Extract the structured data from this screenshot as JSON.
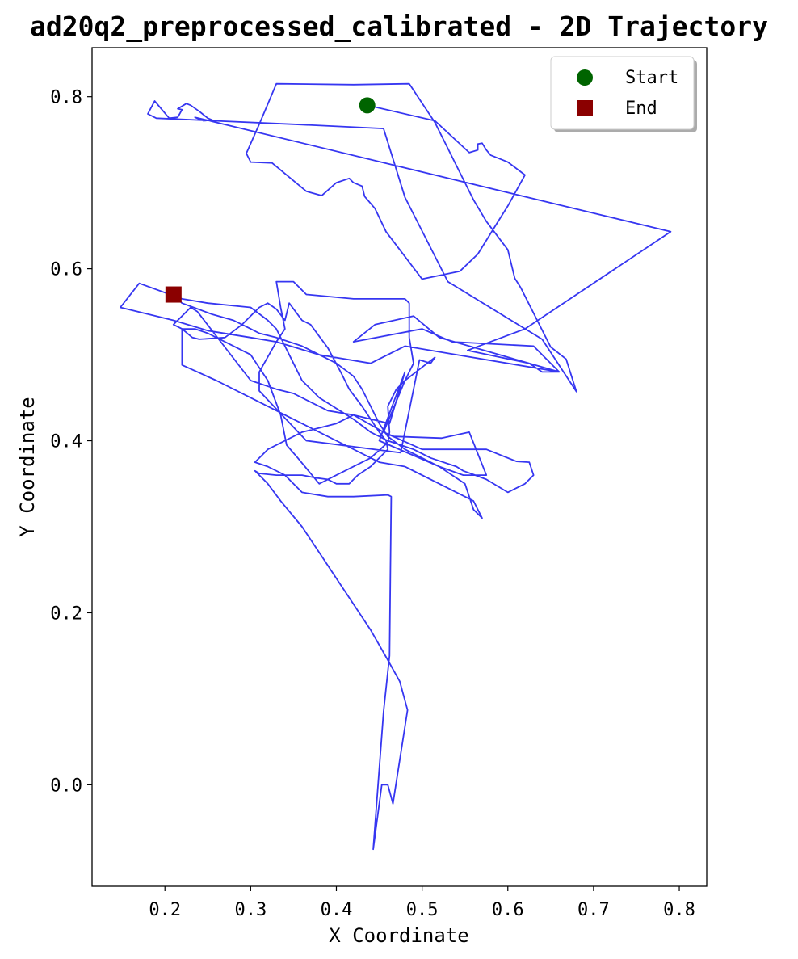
{
  "chart_data": {
    "type": "line",
    "title": "ad20q2_preprocessed_calibrated - 2D Trajectory",
    "xlabel": "X Coordinate",
    "ylabel": "Y Coordinate",
    "xlim": [
      0.115,
      0.832
    ],
    "ylim": [
      -0.118,
      0.857
    ],
    "xticks": [
      0.2,
      0.3,
      0.4,
      0.5,
      0.6,
      0.7,
      0.8
    ],
    "xtick_labels": [
      "0.2",
      "0.3",
      "0.4",
      "0.5",
      "0.6",
      "0.7",
      "0.8"
    ],
    "yticks": [
      0.0,
      0.2,
      0.4,
      0.6,
      0.8
    ],
    "ytick_labels": [
      "0.0",
      "0.2",
      "0.4",
      "0.6",
      "0.8"
    ],
    "grid": false,
    "line_color": "#2b2bf0",
    "legend": {
      "position": "top-right",
      "entries": [
        {
          "label": "Start",
          "marker": "circle",
          "color": "#006400"
        },
        {
          "label": "End",
          "marker": "square",
          "color": "#8b0000"
        }
      ]
    },
    "start_point": {
      "x": 0.436,
      "y": 0.79
    },
    "end_point": {
      "x": 0.21,
      "y": 0.57
    },
    "series": [
      {
        "name": "trajectory",
        "points": [
          [
            0.436,
            0.79
          ],
          [
            0.515,
            0.772
          ],
          [
            0.555,
            0.735
          ],
          [
            0.565,
            0.738
          ],
          [
            0.565,
            0.745
          ],
          [
            0.57,
            0.746
          ],
          [
            0.575,
            0.738
          ],
          [
            0.58,
            0.732
          ],
          [
            0.6,
            0.724
          ],
          [
            0.62,
            0.709
          ],
          [
            0.6,
            0.673
          ],
          [
            0.59,
            0.657
          ],
          [
            0.565,
            0.617
          ],
          [
            0.544,
            0.597
          ],
          [
            0.5,
            0.588
          ],
          [
            0.458,
            0.643
          ],
          [
            0.445,
            0.67
          ],
          [
            0.433,
            0.684
          ],
          [
            0.43,
            0.696
          ],
          [
            0.42,
            0.7
          ],
          [
            0.415,
            0.705
          ],
          [
            0.4,
            0.7
          ],
          [
            0.383,
            0.685
          ],
          [
            0.365,
            0.69
          ],
          [
            0.325,
            0.723
          ],
          [
            0.3,
            0.724
          ],
          [
            0.295,
            0.734
          ],
          [
            0.31,
            0.768
          ],
          [
            0.33,
            0.815
          ],
          [
            0.42,
            0.814
          ],
          [
            0.485,
            0.815
          ],
          [
            0.515,
            0.77
          ],
          [
            0.56,
            0.68
          ],
          [
            0.575,
            0.655
          ],
          [
            0.6,
            0.622
          ],
          [
            0.608,
            0.589
          ],
          [
            0.615,
            0.578
          ],
          [
            0.65,
            0.509
          ],
          [
            0.668,
            0.495
          ],
          [
            0.68,
            0.457
          ],
          [
            0.64,
            0.518
          ],
          [
            0.53,
            0.585
          ],
          [
            0.48,
            0.683
          ],
          [
            0.455,
            0.763
          ],
          [
            0.35,
            0.768
          ],
          [
            0.19,
            0.775
          ],
          [
            0.18,
            0.78
          ],
          [
            0.188,
            0.795
          ],
          [
            0.205,
            0.775
          ],
          [
            0.215,
            0.776
          ],
          [
            0.22,
            0.785
          ],
          [
            0.215,
            0.786
          ],
          [
            0.225,
            0.792
          ],
          [
            0.23,
            0.79
          ],
          [
            0.24,
            0.783
          ],
          [
            0.25,
            0.775
          ],
          [
            0.255,
            0.773
          ],
          [
            0.245,
            0.772
          ],
          [
            0.235,
            0.776
          ],
          [
            0.79,
            0.643
          ],
          [
            0.62,
            0.53
          ],
          [
            0.553,
            0.505
          ],
          [
            0.625,
            0.49
          ],
          [
            0.64,
            0.48
          ],
          [
            0.66,
            0.48
          ],
          [
            0.63,
            0.51
          ],
          [
            0.535,
            0.515
          ],
          [
            0.5,
            0.53
          ],
          [
            0.42,
            0.515
          ],
          [
            0.445,
            0.535
          ],
          [
            0.49,
            0.545
          ],
          [
            0.52,
            0.52
          ],
          [
            0.555,
            0.51
          ],
          [
            0.66,
            0.48
          ],
          [
            0.48,
            0.51
          ],
          [
            0.44,
            0.49
          ],
          [
            0.38,
            0.5
          ],
          [
            0.33,
            0.515
          ],
          [
            0.31,
            0.48
          ],
          [
            0.31,
            0.458
          ],
          [
            0.365,
            0.4
          ],
          [
            0.475,
            0.386
          ],
          [
            0.497,
            0.494
          ],
          [
            0.51,
            0.49
          ],
          [
            0.515,
            0.497
          ],
          [
            0.48,
            0.47
          ],
          [
            0.455,
            0.41
          ],
          [
            0.467,
            0.405
          ],
          [
            0.523,
            0.403
          ],
          [
            0.555,
            0.41
          ],
          [
            0.575,
            0.36
          ],
          [
            0.548,
            0.36
          ],
          [
            0.52,
            0.37
          ],
          [
            0.45,
            0.4
          ],
          [
            0.48,
            0.48
          ],
          [
            0.462,
            0.42
          ],
          [
            0.42,
            0.43
          ],
          [
            0.39,
            0.435
          ],
          [
            0.35,
            0.455
          ],
          [
            0.33,
            0.46
          ],
          [
            0.3,
            0.47
          ],
          [
            0.238,
            0.55
          ],
          [
            0.23,
            0.555
          ],
          [
            0.215,
            0.54
          ],
          [
            0.21,
            0.535
          ],
          [
            0.22,
            0.53
          ],
          [
            0.232,
            0.52
          ],
          [
            0.24,
            0.518
          ],
          [
            0.27,
            0.52
          ],
          [
            0.29,
            0.535
          ],
          [
            0.31,
            0.555
          ],
          [
            0.32,
            0.56
          ],
          [
            0.33,
            0.553
          ],
          [
            0.34,
            0.54
          ],
          [
            0.345,
            0.56
          ],
          [
            0.36,
            0.54
          ],
          [
            0.37,
            0.535
          ],
          [
            0.39,
            0.508
          ],
          [
            0.405,
            0.48
          ],
          [
            0.415,
            0.46
          ],
          [
            0.43,
            0.44
          ],
          [
            0.45,
            0.41
          ],
          [
            0.458,
            0.4
          ],
          [
            0.46,
            0.39
          ],
          [
            0.455,
            0.385
          ],
          [
            0.45,
            0.38
          ],
          [
            0.44,
            0.37
          ],
          [
            0.425,
            0.36
          ],
          [
            0.415,
            0.35
          ],
          [
            0.4,
            0.35
          ],
          [
            0.39,
            0.355
          ],
          [
            0.375,
            0.357
          ],
          [
            0.36,
            0.36
          ],
          [
            0.345,
            0.36
          ],
          [
            0.33,
            0.36
          ],
          [
            0.31,
            0.362
          ],
          [
            0.305,
            0.365
          ],
          [
            0.32,
            0.35
          ],
          [
            0.335,
            0.33
          ],
          [
            0.36,
            0.3
          ],
          [
            0.38,
            0.27
          ],
          [
            0.4,
            0.24
          ],
          [
            0.42,
            0.21
          ],
          [
            0.44,
            0.18
          ],
          [
            0.46,
            0.145
          ],
          [
            0.474,
            0.12
          ],
          [
            0.483,
            0.087
          ],
          [
            0.466,
            -0.022
          ],
          [
            0.46,
            0.0
          ],
          [
            0.453,
            0.0
          ],
          [
            0.443,
            -0.075
          ],
          [
            0.455,
            0.085
          ],
          [
            0.462,
            0.15
          ],
          [
            0.463,
            0.25
          ],
          [
            0.464,
            0.335
          ],
          [
            0.46,
            0.337
          ],
          [
            0.42,
            0.335
          ],
          [
            0.39,
            0.335
          ],
          [
            0.36,
            0.34
          ],
          [
            0.34,
            0.36
          ],
          [
            0.32,
            0.37
          ],
          [
            0.305,
            0.375
          ],
          [
            0.32,
            0.39
          ],
          [
            0.34,
            0.4
          ],
          [
            0.36,
            0.41
          ],
          [
            0.38,
            0.415
          ],
          [
            0.4,
            0.42
          ],
          [
            0.42,
            0.43
          ],
          [
            0.455,
            0.41
          ],
          [
            0.5,
            0.39
          ],
          [
            0.55,
            0.39
          ],
          [
            0.575,
            0.39
          ],
          [
            0.61,
            0.376
          ],
          [
            0.625,
            0.375
          ],
          [
            0.63,
            0.36
          ],
          [
            0.62,
            0.35
          ],
          [
            0.6,
            0.34
          ],
          [
            0.575,
            0.355
          ],
          [
            0.562,
            0.36
          ],
          [
            0.548,
            0.365
          ],
          [
            0.54,
            0.37
          ],
          [
            0.51,
            0.38
          ],
          [
            0.49,
            0.39
          ],
          [
            0.46,
            0.4
          ],
          [
            0.44,
            0.41
          ],
          [
            0.42,
            0.425
          ],
          [
            0.38,
            0.45
          ],
          [
            0.36,
            0.47
          ],
          [
            0.35,
            0.49
          ],
          [
            0.34,
            0.51
          ],
          [
            0.33,
            0.53
          ],
          [
            0.32,
            0.54
          ],
          [
            0.3,
            0.555
          ],
          [
            0.25,
            0.56
          ],
          [
            0.22,
            0.565
          ],
          [
            0.17,
            0.583
          ],
          [
            0.148,
            0.555
          ],
          [
            0.21,
            0.54
          ],
          [
            0.25,
            0.528
          ],
          [
            0.3,
            0.52
          ],
          [
            0.33,
            0.515
          ],
          [
            0.34,
            0.53
          ],
          [
            0.335,
            0.555
          ],
          [
            0.33,
            0.585
          ],
          [
            0.35,
            0.585
          ],
          [
            0.365,
            0.57
          ],
          [
            0.42,
            0.565
          ],
          [
            0.48,
            0.565
          ],
          [
            0.485,
            0.56
          ],
          [
            0.485,
            0.52
          ],
          [
            0.49,
            0.49
          ],
          [
            0.48,
            0.47
          ],
          [
            0.47,
            0.46
          ],
          [
            0.46,
            0.44
          ],
          [
            0.462,
            0.41
          ],
          [
            0.46,
            0.398
          ],
          [
            0.44,
            0.38
          ],
          [
            0.4,
            0.36
          ],
          [
            0.38,
            0.35
          ],
          [
            0.355,
            0.38
          ],
          [
            0.342,
            0.395
          ],
          [
            0.335,
            0.43
          ],
          [
            0.32,
            0.47
          ],
          [
            0.3,
            0.5
          ],
          [
            0.27,
            0.515
          ],
          [
            0.25,
            0.525
          ],
          [
            0.235,
            0.53
          ],
          [
            0.22,
            0.53
          ],
          [
            0.22,
            0.5
          ],
          [
            0.22,
            0.488
          ],
          [
            0.26,
            0.47
          ],
          [
            0.3,
            0.45
          ],
          [
            0.35,
            0.425
          ],
          [
            0.4,
            0.4
          ],
          [
            0.45,
            0.375
          ],
          [
            0.48,
            0.37
          ],
          [
            0.52,
            0.35
          ],
          [
            0.56,
            0.33
          ],
          [
            0.57,
            0.31
          ],
          [
            0.56,
            0.32
          ],
          [
            0.55,
            0.35
          ],
          [
            0.52,
            0.37
          ],
          [
            0.48,
            0.39
          ],
          [
            0.46,
            0.405
          ],
          [
            0.45,
            0.42
          ],
          [
            0.44,
            0.44
          ],
          [
            0.43,
            0.46
          ],
          [
            0.42,
            0.475
          ],
          [
            0.4,
            0.49
          ],
          [
            0.38,
            0.5
          ],
          [
            0.36,
            0.51
          ],
          [
            0.33,
            0.52
          ],
          [
            0.31,
            0.525
          ],
          [
            0.3,
            0.53
          ],
          [
            0.28,
            0.54
          ],
          [
            0.255,
            0.547
          ],
          [
            0.22,
            0.56
          ],
          [
            0.21,
            0.57
          ]
        ]
      }
    ]
  }
}
